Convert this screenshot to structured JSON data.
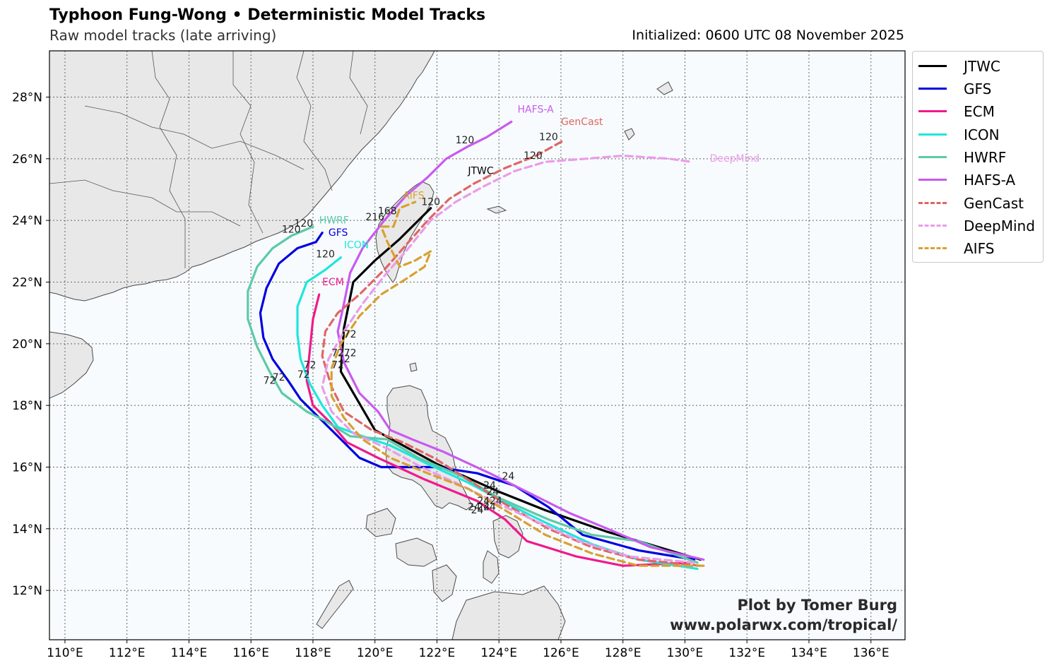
{
  "header": {
    "title": "Typhoon Fung-Wong • Deterministic Model Tracks",
    "subtitle": "Raw model tracks (late arriving)",
    "initialized": "Initialized: 0600 UTC 08 November 2025"
  },
  "credit": {
    "line1": "Plot by Tomer Burg",
    "line2": "www.polarwx.com/tropical/"
  },
  "map": {
    "lon_range": [
      109.5,
      137.1
    ],
    "lat_range": [
      10.4,
      29.5
    ],
    "lon_ticks": [
      110,
      112,
      114,
      116,
      118,
      120,
      122,
      124,
      126,
      128,
      130,
      132,
      134,
      136
    ],
    "lat_ticks": [
      12,
      14,
      16,
      18,
      20,
      22,
      24,
      26,
      28
    ],
    "lon_tick_labels": [
      "110°E",
      "112°E",
      "114°E",
      "116°E",
      "118°E",
      "120°E",
      "122°E",
      "124°E",
      "126°E",
      "128°E",
      "130°E",
      "132°E",
      "134°E",
      "136°E"
    ],
    "lat_tick_labels": [
      "12°N",
      "14°N",
      "16°N",
      "18°N",
      "20°N",
      "22°N",
      "24°N",
      "26°N",
      "28°N"
    ],
    "grid": true,
    "ocean_color": "#f7fbfd",
    "land_color": "#e8e8e8"
  },
  "legend": {
    "position": "outside-right",
    "items": [
      {
        "label": "JTWC",
        "color": "#000000",
        "dashed": false
      },
      {
        "label": "GFS",
        "color": "#0000e0",
        "dashed": false
      },
      {
        "label": "ECM",
        "color": "#f0198c",
        "dashed": false
      },
      {
        "label": "ICON",
        "color": "#1fe6dc",
        "dashed": false
      },
      {
        "label": "HWRF",
        "color": "#5ccaa6",
        "dashed": false
      },
      {
        "label": "HAFS-A",
        "color": "#c85af0",
        "dashed": false
      },
      {
        "label": "GenCast",
        "color": "#e06666",
        "dashed": true
      },
      {
        "label": "DeepMind",
        "color": "#ec9be8",
        "dashed": true
      },
      {
        "label": "AIFS",
        "color": "#d9a030",
        "dashed": true
      }
    ]
  },
  "tracks": [
    {
      "name": "JTWC",
      "color": "#000000",
      "dashed": false,
      "points": [
        [
          130.5,
          13.0
        ],
        [
          127.5,
          13.9
        ],
        [
          125.5,
          14.6
        ],
        [
          124.0,
          15.2
        ],
        [
          122.0,
          16.1
        ],
        [
          120.0,
          17.2
        ],
        [
          118.9,
          19.1
        ],
        [
          119.0,
          20.5
        ],
        [
          119.3,
          22.0
        ],
        [
          120.0,
          22.7
        ],
        [
          120.8,
          23.4
        ],
        [
          121.8,
          24.4
        ]
      ],
      "hour_labels": [
        {
          "text": "24",
          "lon": 123.7,
          "lat": 15.3
        },
        {
          "text": "72",
          "lon": 119.2,
          "lat": 20.2
        },
        {
          "text": "120",
          "lon": 121.8,
          "lat": 24.5
        }
      ],
      "end_label": {
        "text": "JTWC",
        "lon": 123.0,
        "lat": 25.5
      }
    },
    {
      "name": "GFS",
      "color": "#0000e0",
      "dashed": false,
      "points": [
        [
          130.3,
          13.0
        ],
        [
          128.5,
          13.3
        ],
        [
          126.7,
          13.8
        ],
        [
          125.6,
          14.7
        ],
        [
          124.5,
          15.4
        ],
        [
          123.3,
          15.8
        ],
        [
          122.0,
          16.0
        ],
        [
          120.2,
          16.0
        ],
        [
          119.5,
          16.3
        ],
        [
          118.8,
          17.0
        ],
        [
          118.2,
          17.6
        ],
        [
          117.6,
          18.2
        ],
        [
          117.2,
          18.8
        ],
        [
          116.7,
          19.5
        ],
        [
          116.4,
          20.2
        ],
        [
          116.3,
          21.0
        ],
        [
          116.5,
          21.8
        ],
        [
          116.9,
          22.6
        ],
        [
          117.5,
          23.1
        ],
        [
          118.1,
          23.3
        ],
        [
          118.3,
          23.6
        ]
      ],
      "hour_labels": [
        {
          "text": "24",
          "lon": 123.8,
          "lat": 15.1
        },
        {
          "text": "72",
          "lon": 116.9,
          "lat": 18.8
        },
        {
          "text": "120",
          "lon": 117.7,
          "lat": 23.8
        }
      ],
      "end_label": {
        "text": "GFS",
        "lon": 118.5,
        "lat": 23.5
      }
    },
    {
      "name": "ECM",
      "color": "#f0198c",
      "dashed": false,
      "points": [
        [
          130.2,
          12.9
        ],
        [
          128.0,
          12.8
        ],
        [
          126.5,
          13.1
        ],
        [
          124.9,
          13.6
        ],
        [
          124.2,
          14.3
        ],
        [
          123.3,
          14.9
        ],
        [
          121.6,
          15.6
        ],
        [
          120.1,
          16.3
        ],
        [
          119.1,
          16.8
        ],
        [
          118.6,
          17.4
        ],
        [
          118.0,
          18.0
        ],
        [
          117.8,
          18.8
        ],
        [
          117.9,
          19.8
        ],
        [
          118.0,
          20.8
        ],
        [
          118.2,
          21.6
        ]
      ],
      "hour_labels": [
        {
          "text": "24",
          "lon": 123.5,
          "lat": 14.6
        },
        {
          "text": "72",
          "lon": 117.9,
          "lat": 19.2
        }
      ],
      "end_label": {
        "text": "ECM",
        "lon": 118.3,
        "lat": 21.9
      }
    },
    {
      "name": "ICON",
      "color": "#1fe6dc",
      "dashed": false,
      "points": [
        [
          130.4,
          12.7
        ],
        [
          128.5,
          13.0
        ],
        [
          127.0,
          13.5
        ],
        [
          125.5,
          14.2
        ],
        [
          124.3,
          14.8
        ],
        [
          123.0,
          15.5
        ],
        [
          121.7,
          16.1
        ],
        [
          120.5,
          16.7
        ],
        [
          119.6,
          17.0
        ],
        [
          118.8,
          17.3
        ],
        [
          118.3,
          18.0
        ],
        [
          117.9,
          18.7
        ],
        [
          117.6,
          19.5
        ],
        [
          117.5,
          20.3
        ],
        [
          117.5,
          21.2
        ],
        [
          117.8,
          22.0
        ],
        [
          118.4,
          22.4
        ],
        [
          118.9,
          22.8
        ]
      ],
      "hour_labels": [
        {
          "text": "24",
          "lon": 123.9,
          "lat": 14.8
        },
        {
          "text": "72",
          "lon": 117.7,
          "lat": 18.9
        },
        {
          "text": "120",
          "lon": 118.4,
          "lat": 22.8
        }
      ],
      "end_label": {
        "text": "ICON",
        "lon": 119.0,
        "lat": 23.1
      }
    },
    {
      "name": "HWRF",
      "color": "#5ccaa6",
      "dashed": false,
      "points": [
        [
          130.4,
          12.9
        ],
        [
          128.5,
          13.6
        ],
        [
          127.0,
          13.8
        ],
        [
          125.6,
          14.3
        ],
        [
          124.0,
          15.0
        ],
        [
          122.8,
          15.7
        ],
        [
          121.4,
          16.3
        ],
        [
          120.4,
          16.9
        ],
        [
          119.2,
          17.0
        ],
        [
          118.4,
          17.5
        ],
        [
          117.8,
          17.8
        ],
        [
          117.0,
          18.4
        ],
        [
          116.6,
          19.1
        ],
        [
          116.2,
          19.9
        ],
        [
          115.9,
          20.8
        ],
        [
          115.9,
          21.7
        ],
        [
          116.2,
          22.5
        ],
        [
          116.7,
          23.1
        ],
        [
          117.3,
          23.5
        ],
        [
          118.0,
          23.8
        ]
      ],
      "hour_labels": [
        {
          "text": "24",
          "lon": 123.2,
          "lat": 14.6
        },
        {
          "text": "72",
          "lon": 116.6,
          "lat": 18.7
        },
        {
          "text": "120",
          "lon": 117.3,
          "lat": 23.6
        }
      ],
      "end_label": {
        "text": "HWRF",
        "lon": 118.2,
        "lat": 23.9
      }
    },
    {
      "name": "HAFS-A",
      "color": "#c85af0",
      "dashed": false,
      "points": [
        [
          130.6,
          13.0
        ],
        [
          128.9,
          13.4
        ],
        [
          127.5,
          14.0
        ],
        [
          126.3,
          14.5
        ],
        [
          124.9,
          15.2
        ],
        [
          123.7,
          15.8
        ],
        [
          122.2,
          16.5
        ],
        [
          121.2,
          16.9
        ],
        [
          120.5,
          17.2
        ],
        [
          120.1,
          17.8
        ],
        [
          119.5,
          18.4
        ],
        [
          119.0,
          19.4
        ],
        [
          118.8,
          20.4
        ],
        [
          119.0,
          21.3
        ],
        [
          119.2,
          22.3
        ],
        [
          119.6,
          23.1
        ],
        [
          120.3,
          24.0
        ],
        [
          121.0,
          24.8
        ],
        [
          121.7,
          25.4
        ],
        [
          122.3,
          26.0
        ],
        [
          123.0,
          26.4
        ],
        [
          123.6,
          26.7
        ],
        [
          124.4,
          27.2
        ]
      ],
      "hour_labels": [
        {
          "text": "24",
          "lon": 124.3,
          "lat": 15.6
        },
        {
          "text": "72",
          "lon": 119.2,
          "lat": 19.6
        },
        {
          "text": "120",
          "lon": 122.9,
          "lat": 26.5
        }
      ],
      "end_label": {
        "text": "HAFS-A",
        "lon": 124.6,
        "lat": 27.5
      }
    },
    {
      "name": "GenCast",
      "color": "#e06666",
      "dashed": true,
      "points": [
        [
          130.5,
          12.8
        ],
        [
          128.5,
          13.0
        ],
        [
          127.0,
          13.4
        ],
        [
          125.6,
          14.0
        ],
        [
          124.2,
          14.8
        ],
        [
          123.0,
          15.6
        ],
        [
          121.9,
          16.3
        ],
        [
          120.9,
          16.8
        ],
        [
          119.9,
          17.2
        ],
        [
          119.0,
          17.8
        ],
        [
          118.6,
          18.6
        ],
        [
          118.3,
          19.6
        ],
        [
          118.4,
          20.4
        ],
        [
          118.8,
          21.0
        ],
        [
          119.5,
          21.6
        ],
        [
          120.3,
          22.4
        ],
        [
          121.0,
          23.2
        ],
        [
          121.7,
          24.0
        ],
        [
          122.4,
          24.7
        ],
        [
          123.2,
          25.2
        ],
        [
          124.2,
          25.7
        ],
        [
          125.2,
          26.1
        ],
        [
          126.1,
          26.6
        ]
      ],
      "hour_labels": [
        {
          "text": "24",
          "lon": 123.5,
          "lat": 14.8
        },
        {
          "text": "72",
          "lon": 118.8,
          "lat": 19.2
        },
        {
          "text": "120",
          "lon": 125.6,
          "lat": 26.6
        }
      ],
      "end_label": {
        "text": "GenCast",
        "lon": 126.0,
        "lat": 27.1
      }
    },
    {
      "name": "DeepMind",
      "color": "#ec9be8",
      "dashed": true,
      "points": [
        [
          130.3,
          12.9
        ],
        [
          128.2,
          13.1
        ],
        [
          126.6,
          13.6
        ],
        [
          125.3,
          14.2
        ],
        [
          124.0,
          14.8
        ],
        [
          122.8,
          15.4
        ],
        [
          121.5,
          16.0
        ],
        [
          120.4,
          16.6
        ],
        [
          119.3,
          17.1
        ],
        [
          118.6,
          17.8
        ],
        [
          118.3,
          18.6
        ],
        [
          118.5,
          19.5
        ],
        [
          119.0,
          20.4
        ],
        [
          119.6,
          21.3
        ],
        [
          120.3,
          22.2
        ],
        [
          121.0,
          23.0
        ],
        [
          121.8,
          24.0
        ],
        [
          122.6,
          24.6
        ],
        [
          123.5,
          25.1
        ],
        [
          124.5,
          25.6
        ],
        [
          125.5,
          25.9
        ],
        [
          126.8,
          26.0
        ],
        [
          128.0,
          26.1
        ],
        [
          129.5,
          26.0
        ],
        [
          130.2,
          25.9
        ]
      ],
      "hour_labels": [
        {
          "text": "24",
          "lon": 123.3,
          "lat": 14.5
        },
        {
          "text": "72",
          "lon": 119.0,
          "lat": 19.4
        },
        {
          "text": "120",
          "lon": 125.1,
          "lat": 26.0
        }
      ],
      "end_label": {
        "text": "DeepMind",
        "lon": 130.8,
        "lat": 25.9
      }
    },
    {
      "name": "AIFS",
      "color": "#d9a030",
      "dashed": true,
      "points": [
        [
          130.6,
          12.8
        ],
        [
          128.5,
          12.8
        ],
        [
          127.0,
          13.2
        ],
        [
          125.5,
          13.8
        ],
        [
          124.2,
          14.6
        ],
        [
          123.0,
          15.3
        ],
        [
          121.7,
          15.8
        ],
        [
          120.5,
          16.3
        ],
        [
          119.6,
          16.9
        ],
        [
          119.0,
          17.6
        ],
        [
          118.6,
          18.3
        ],
        [
          118.6,
          19.2
        ],
        [
          118.9,
          20.0
        ],
        [
          119.5,
          20.9
        ],
        [
          120.2,
          21.6
        ],
        [
          121.0,
          22.1
        ],
        [
          121.6,
          22.5
        ],
        [
          121.8,
          23.0
        ],
        [
          121.3,
          22.7
        ],
        [
          120.8,
          22.5
        ],
        [
          120.4,
          23.3
        ],
        [
          120.2,
          23.8
        ],
        [
          120.6,
          23.8
        ],
        [
          120.8,
          24.4
        ],
        [
          121.3,
          24.6
        ]
      ],
      "hour_labels": [
        {
          "text": "24",
          "lon": 123.7,
          "lat": 14.6
        },
        {
          "text": "72",
          "lon": 118.8,
          "lat": 19.6
        },
        {
          "text": "168",
          "lon": 120.4,
          "lat": 24.2
        },
        {
          "text": "216",
          "lon": 120.0,
          "lat": 24.0
        }
      ],
      "end_label": {
        "text": "AIFS",
        "lon": 120.9,
        "lat": 24.7
      }
    }
  ]
}
